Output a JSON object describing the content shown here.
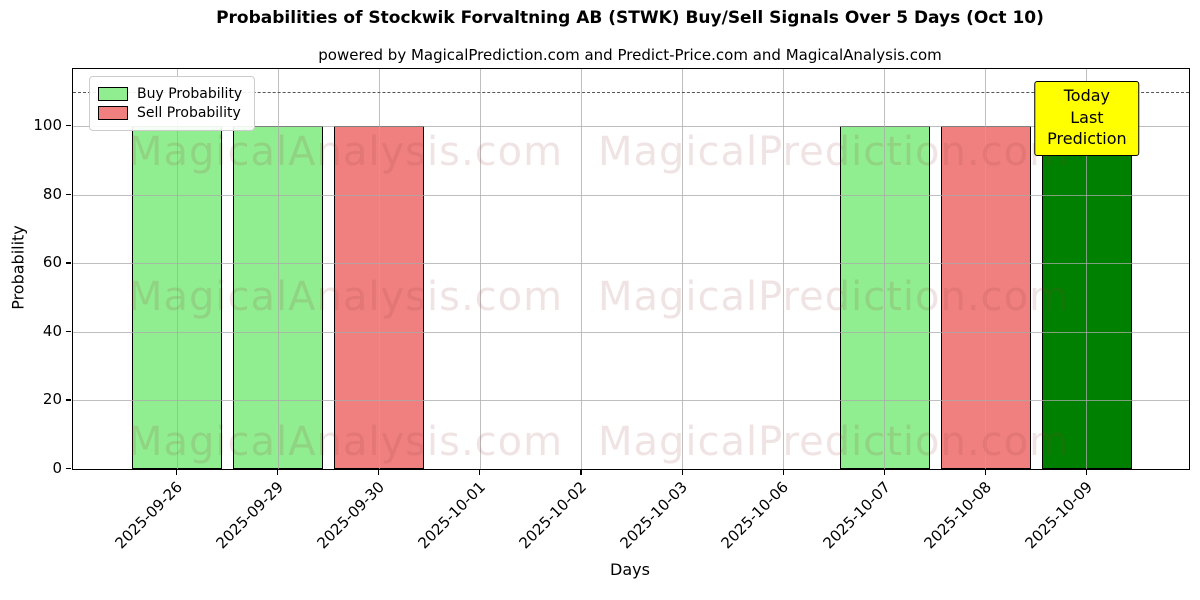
{
  "chart_data": {
    "type": "bar",
    "title": "Probabilities of Stockwik Forvaltning AB (STWK) Buy/Sell Signals Over 5 Days (Oct 10)",
    "subtitle": "powered by MagicalPrediction.com and Predict-Price.com and MagicalAnalysis.com",
    "xlabel": "Days",
    "ylabel": "Probability",
    "ylim": [
      0,
      116.7
    ],
    "yticks": [
      0,
      20,
      40,
      60,
      80,
      100
    ],
    "grid": true,
    "dashed_guide_y": 110,
    "legend_position": "upper-left",
    "categories": [
      "2025-09-26",
      "2025-09-29",
      "2025-09-30",
      "2025-10-01",
      "2025-10-02",
      "2025-10-03",
      "2025-10-06",
      "2025-10-07",
      "2025-10-08",
      "2025-10-09"
    ],
    "bars": [
      {
        "date": "2025-09-26",
        "value": 100,
        "signal": "buy",
        "color": "#90ee90"
      },
      {
        "date": "2025-09-29",
        "value": 100,
        "signal": "buy",
        "color": "#90ee90"
      },
      {
        "date": "2025-09-30",
        "value": 100,
        "signal": "sell",
        "color": "#f08080"
      },
      {
        "date": "2025-10-01",
        "value": 0,
        "signal": "none",
        "color": ""
      },
      {
        "date": "2025-10-02",
        "value": 0,
        "signal": "none",
        "color": ""
      },
      {
        "date": "2025-10-03",
        "value": 0,
        "signal": "none",
        "color": ""
      },
      {
        "date": "2025-10-06",
        "value": 0,
        "signal": "none",
        "color": ""
      },
      {
        "date": "2025-10-07",
        "value": 100,
        "signal": "buy",
        "color": "#90ee90"
      },
      {
        "date": "2025-10-08",
        "value": 100,
        "signal": "sell",
        "color": "#f08080"
      },
      {
        "date": "2025-10-09",
        "value": 100,
        "signal": "buy-last-prediction",
        "color": "#008000"
      }
    ],
    "legend": [
      {
        "label": "Buy Probability",
        "color": "#90ee90"
      },
      {
        "label": "Sell Probability",
        "color": "#f08080"
      }
    ],
    "annotation": {
      "line1": "Today",
      "line2": "Last Prediction",
      "bg_color": "#ffff00"
    },
    "watermark": {
      "left_text": "MagicalAnalysis.com",
      "right_text": "MagicalPrediction.com",
      "rows": 3
    },
    "colors": {
      "grid": "#aaaaaa",
      "bar_edge": "#000000",
      "dashed_line": "#555555",
      "today_bar": "#008000"
    }
  }
}
